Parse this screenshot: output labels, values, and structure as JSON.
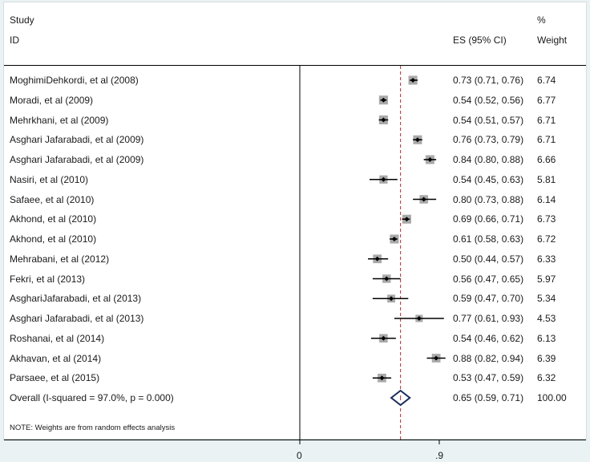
{
  "header": {
    "study_label": "Study",
    "id_label": "ID",
    "es_label": "ES (95% CI)",
    "pct_label": "%",
    "weight_label": "Weight"
  },
  "note": "NOTE: Weights are from random effects analysis",
  "colors": {
    "background": "#eaf2f3",
    "panel": "#ffffff",
    "marker_square": "#a9a9a9",
    "ci_line": "#000000",
    "null_line": "#000000",
    "overall_line": "#b0283a",
    "diamond": "#1a2a5a"
  },
  "chart_data": {
    "type": "forest",
    "x_ticks": [
      0,
      0.9
    ],
    "x_tick_labels": [
      "0",
      ".9"
    ],
    "null_line": 0,
    "overall_line": 0.65,
    "studies": [
      {
        "id": "MoghimiDehkordi, et al (2008)",
        "es": 0.73,
        "lo": 0.71,
        "hi": 0.76,
        "es_text": "0.73 (0.71, 0.76)",
        "weight": 6.74,
        "weight_text": "6.74"
      },
      {
        "id": "Moradi, et al (2009)",
        "es": 0.54,
        "lo": 0.52,
        "hi": 0.56,
        "es_text": "0.54 (0.52, 0.56)",
        "weight": 6.77,
        "weight_text": "6.77"
      },
      {
        "id": "Mehrkhani, et al (2009)",
        "es": 0.54,
        "lo": 0.51,
        "hi": 0.57,
        "es_text": "0.54 (0.51, 0.57)",
        "weight": 6.71,
        "weight_text": "6.71"
      },
      {
        "id": "Asghari Jafarabadi, et al (2009)",
        "es": 0.76,
        "lo": 0.73,
        "hi": 0.79,
        "es_text": "0.76 (0.73, 0.79)",
        "weight": 6.71,
        "weight_text": "6.71"
      },
      {
        "id": "Asghari Jafarabadi, et al (2009)",
        "es": 0.84,
        "lo": 0.8,
        "hi": 0.88,
        "es_text": "0.84 (0.80, 0.88)",
        "weight": 6.66,
        "weight_text": "6.66"
      },
      {
        "id": "Nasiri, et al (2010)",
        "es": 0.54,
        "lo": 0.45,
        "hi": 0.63,
        "es_text": "0.54 (0.45, 0.63)",
        "weight": 5.81,
        "weight_text": "5.81"
      },
      {
        "id": "Safaee, et al (2010)",
        "es": 0.8,
        "lo": 0.73,
        "hi": 0.88,
        "es_text": "0.80 (0.73, 0.88)",
        "weight": 6.14,
        "weight_text": "6.14"
      },
      {
        "id": "Akhond, et al (2010)",
        "es": 0.69,
        "lo": 0.66,
        "hi": 0.71,
        "es_text": "0.69 (0.66, 0.71)",
        "weight": 6.73,
        "weight_text": "6.73"
      },
      {
        "id": "Akhond, et al (2010)",
        "es": 0.61,
        "lo": 0.58,
        "hi": 0.63,
        "es_text": "0.61 (0.58, 0.63)",
        "weight": 6.72,
        "weight_text": "6.72"
      },
      {
        "id": "Mehrabani, et al (2012)",
        "es": 0.5,
        "lo": 0.44,
        "hi": 0.57,
        "es_text": "0.50 (0.44, 0.57)",
        "weight": 6.33,
        "weight_text": "6.33"
      },
      {
        "id": "Fekri, et al (2013)",
        "es": 0.56,
        "lo": 0.47,
        "hi": 0.65,
        "es_text": "0.56 (0.47, 0.65)",
        "weight": 5.97,
        "weight_text": "5.97"
      },
      {
        "id": "AsghariJafarabadi, et al (2013)",
        "es": 0.59,
        "lo": 0.47,
        "hi": 0.7,
        "es_text": "0.59 (0.47, 0.70)",
        "weight": 5.34,
        "weight_text": "5.34"
      },
      {
        "id": "Asghari Jafarabadi, et al (2013)",
        "es": 0.77,
        "lo": 0.61,
        "hi": 0.93,
        "es_text": "0.77 (0.61, 0.93)",
        "weight": 4.53,
        "weight_text": "4.53"
      },
      {
        "id": "Roshanai, et al (2014)",
        "es": 0.54,
        "lo": 0.46,
        "hi": 0.62,
        "es_text": "0.54 (0.46, 0.62)",
        "weight": 6.13,
        "weight_text": "6.13"
      },
      {
        "id": "Akhavan, et al (2014)",
        "es": 0.88,
        "lo": 0.82,
        "hi": 0.94,
        "es_text": "0.88 (0.82, 0.94)",
        "weight": 6.39,
        "weight_text": "6.39"
      },
      {
        "id": "Parsaee, et al (2015)",
        "es": 0.53,
        "lo": 0.47,
        "hi": 0.59,
        "es_text": "0.53 (0.47, 0.59)",
        "weight": 6.32,
        "weight_text": "6.32"
      }
    ],
    "overall": {
      "label": "Overall  (I-squared = 97.0%, p = 0.000)",
      "es": 0.65,
      "lo": 0.59,
      "hi": 0.71,
      "es_text": "0.65 (0.59, 0.71)",
      "weight_text": "100.00"
    }
  }
}
